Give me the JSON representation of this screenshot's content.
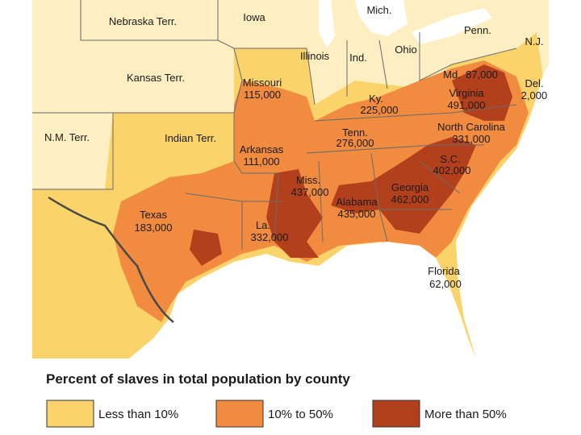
{
  "map": {
    "territories": [
      {
        "name": "Nebraska Terr."
      },
      {
        "name": "Iowa"
      },
      {
        "name": "Mich."
      },
      {
        "name": "Penn."
      },
      {
        "name": "N.J."
      },
      {
        "name": "Illinois"
      },
      {
        "name": "Ind."
      },
      {
        "name": "Ohio"
      },
      {
        "name": "Kansas Terr."
      },
      {
        "name": "N.M. Terr."
      },
      {
        "name": "Indian Terr."
      }
    ],
    "states": [
      {
        "name": "Missouri",
        "count": "115,000"
      },
      {
        "name": "Md.",
        "count": "87,000"
      },
      {
        "name": "Del.",
        "count": "2,000"
      },
      {
        "name": "Ky.",
        "count": "225,000"
      },
      {
        "name": "Virginia",
        "count": "491,000"
      },
      {
        "name": "Tenn.",
        "count": "276,000"
      },
      {
        "name": "North Carolina",
        "count": "331,000"
      },
      {
        "name": "Arkansas",
        "count": "111,000"
      },
      {
        "name": "S.C.",
        "count": "402,000"
      },
      {
        "name": "Miss.",
        "count": "437,000"
      },
      {
        "name": "Georgia",
        "count": "462,000"
      },
      {
        "name": "Alabama",
        "count": "435,000"
      },
      {
        "name": "Texas",
        "count": "183,000"
      },
      {
        "name": "La.",
        "count": "332,000"
      },
      {
        "name": "Florida",
        "count": "62,000"
      }
    ]
  },
  "legend": {
    "title": "Percent of slaves in total population by county",
    "items": [
      {
        "label": "Less than 10%",
        "color": "#fbd36b"
      },
      {
        "label": "10% to 50%",
        "color": "#f08b40"
      },
      {
        "label": "More than 50%",
        "color": "#b3401d"
      }
    ]
  }
}
